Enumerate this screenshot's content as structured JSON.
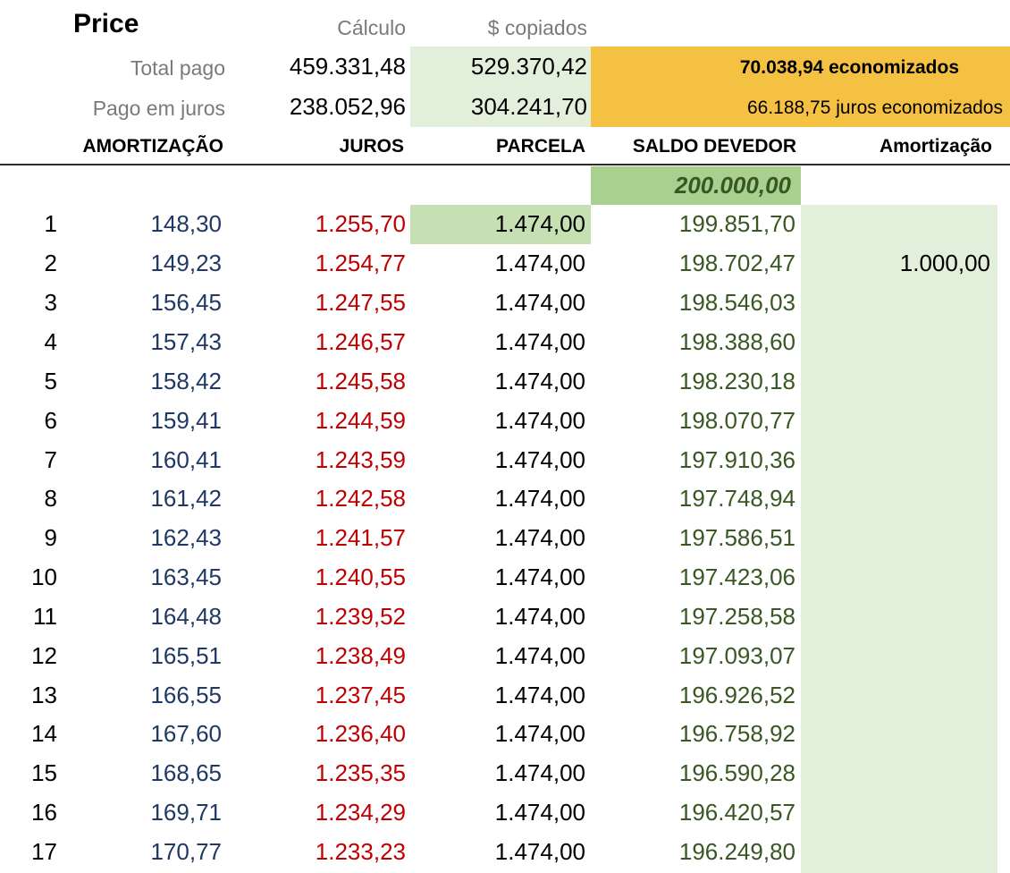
{
  "header": {
    "title": "Price",
    "col_calculo": "Cálculo",
    "col_copiados": "$ copiados",
    "total_pago_label": "Total pago",
    "total_pago_calculo": "459.331,48",
    "total_pago_copiados": "529.370,42",
    "economizados_total": "70.038,94 economizados",
    "pago_juros_label": "Pago em juros",
    "pago_juros_calculo": "238.052,96",
    "pago_juros_copiados": "304.241,70",
    "juros_economizados": "66.188,75 juros economizados"
  },
  "columns": {
    "amortizacao": "AMORTIZAÇÃO",
    "juros": "JUROS",
    "parcela": "PARCELA",
    "saldo": "SALDO DEVEDOR",
    "amortizacao_extra": "Amortização"
  },
  "start_balance": "200.000,00",
  "colors": {
    "amortizacao": "#1f3864",
    "juros": "#c00000",
    "saldo": "#385723",
    "highlight_orange": "#f4c142",
    "highlight_green": "#a9d08e",
    "highlight_lightgreen": "#e2efda"
  },
  "rows": [
    {
      "n": "1",
      "amortizacao": "148,30",
      "juros": "1.255,70",
      "parcela": "1.474,00",
      "saldo": "199.851,70",
      "extra": ""
    },
    {
      "n": "2",
      "amortizacao": "149,23",
      "juros": "1.254,77",
      "parcela": "1.474,00",
      "saldo": "198.702,47",
      "extra": "1.000,00"
    },
    {
      "n": "3",
      "amortizacao": "156,45",
      "juros": "1.247,55",
      "parcela": "1.474,00",
      "saldo": "198.546,03",
      "extra": ""
    },
    {
      "n": "4",
      "amortizacao": "157,43",
      "juros": "1.246,57",
      "parcela": "1.474,00",
      "saldo": "198.388,60",
      "extra": ""
    },
    {
      "n": "5",
      "amortizacao": "158,42",
      "juros": "1.245,58",
      "parcela": "1.474,00",
      "saldo": "198.230,18",
      "extra": ""
    },
    {
      "n": "6",
      "amortizacao": "159,41",
      "juros": "1.244,59",
      "parcela": "1.474,00",
      "saldo": "198.070,77",
      "extra": ""
    },
    {
      "n": "7",
      "amortizacao": "160,41",
      "juros": "1.243,59",
      "parcela": "1.474,00",
      "saldo": "197.910,36",
      "extra": ""
    },
    {
      "n": "8",
      "amortizacao": "161,42",
      "juros": "1.242,58",
      "parcela": "1.474,00",
      "saldo": "197.748,94",
      "extra": ""
    },
    {
      "n": "9",
      "amortizacao": "162,43",
      "juros": "1.241,57",
      "parcela": "1.474,00",
      "saldo": "197.586,51",
      "extra": ""
    },
    {
      "n": "10",
      "amortizacao": "163,45",
      "juros": "1.240,55",
      "parcela": "1.474,00",
      "saldo": "197.423,06",
      "extra": ""
    },
    {
      "n": "11",
      "amortizacao": "164,48",
      "juros": "1.239,52",
      "parcela": "1.474,00",
      "saldo": "197.258,58",
      "extra": ""
    },
    {
      "n": "12",
      "amortizacao": "165,51",
      "juros": "1.238,49",
      "parcela": "1.474,00",
      "saldo": "197.093,07",
      "extra": ""
    },
    {
      "n": "13",
      "amortizacao": "166,55",
      "juros": "1.237,45",
      "parcela": "1.474,00",
      "saldo": "196.926,52",
      "extra": ""
    },
    {
      "n": "14",
      "amortizacao": "167,60",
      "juros": "1.236,40",
      "parcela": "1.474,00",
      "saldo": "196.758,92",
      "extra": ""
    },
    {
      "n": "15",
      "amortizacao": "168,65",
      "juros": "1.235,35",
      "parcela": "1.474,00",
      "saldo": "196.590,28",
      "extra": ""
    },
    {
      "n": "16",
      "amortizacao": "169,71",
      "juros": "1.234,29",
      "parcela": "1.474,00",
      "saldo": "196.420,57",
      "extra": ""
    },
    {
      "n": "17",
      "amortizacao": "170,77",
      "juros": "1.233,23",
      "parcela": "1.474,00",
      "saldo": "196.249,80",
      "extra": ""
    }
  ]
}
